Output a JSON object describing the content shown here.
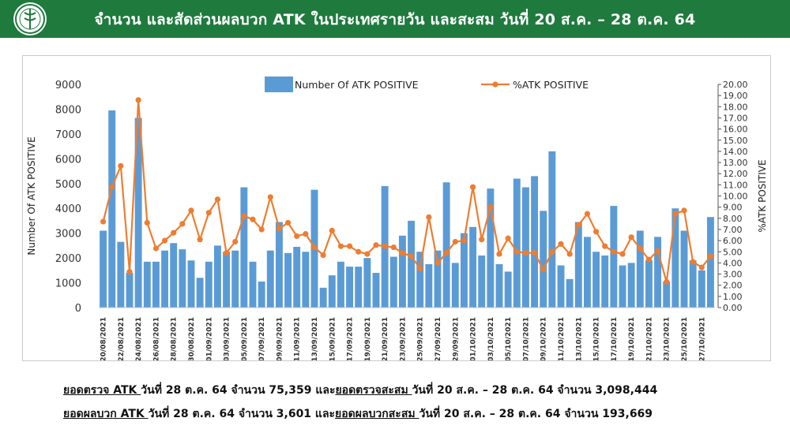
{
  "header": {
    "title": "จำนวน และสัดส่วนผลบวก ATK ในประเทศรายวัน และสะสม วันที่ 20 ส.ค. – 28 ต.ค. 64",
    "logo_icon": "health-department-seal-icon",
    "background": "#1f7a3e"
  },
  "chart_data": {
    "type": "bar+line",
    "ylabel": "Number Of ATK POSITIVE",
    "y2label": "%ATK POSITIVE",
    "ylim": [
      0,
      9000
    ],
    "y2lim": [
      0,
      20
    ],
    "yticks": [
      "0",
      "1000",
      "2000",
      "3000",
      "4000",
      "5000",
      "6000",
      "7000",
      "8000",
      "9000"
    ],
    "y2ticks": [
      "0.00",
      "1.00",
      "2.00",
      "3.00",
      "4.00",
      "5.00",
      "6.00",
      "7.00",
      "8.00",
      "9.00",
      "10.00",
      "11.00",
      "12.00",
      "13.00",
      "14.00",
      "15.00",
      "16.00",
      "17.00",
      "18.00",
      "19.00",
      "20.00"
    ],
    "legend": {
      "placement": "top-center",
      "bar_label": "Number Of ATK POSITIVE",
      "line_label": "%ATK POSITIVE"
    },
    "bar_color": "#5b9bd5",
    "line_color": "#ed7d31",
    "xticks": [
      "20/08/2021",
      "22/08/2021",
      "24/08/2021",
      "26/08/2021",
      "28/08/2021",
      "30/08/2021",
      "01/09/2021",
      "03/09/2021",
      "05/09/2021",
      "07/09/2021",
      "09/09/2021",
      "11/09/2021",
      "13/09/2021",
      "15/09/2021",
      "17/09/2021",
      "19/09/2021",
      "21/09/2021",
      "23/09/2021",
      "25/09/2021",
      "27/09/2021",
      "29/09/2021",
      "01/10/2021",
      "03/10/2021",
      "05/10/2021",
      "07/10/2021",
      "09/10/2021",
      "11/10/2021",
      "13/10/2021",
      "15/10/2021",
      "17/10/2021",
      "19/10/2021",
      "21/10/2021",
      "23/10/2021",
      "25/10/2021",
      "27/10/2021"
    ],
    "series": [
      {
        "name": "Number Of ATK POSITIVE",
        "values": [
          3100,
          7950,
          2650,
          1400,
          7650,
          1850,
          1850,
          2300,
          2600,
          2350,
          1900,
          1200,
          1850,
          2500,
          2250,
          2300,
          4850,
          1850,
          1050,
          2300,
          3450,
          2200,
          2450,
          2250,
          4750,
          800,
          1300,
          1850,
          1650,
          1650,
          2000,
          1400,
          4900,
          2050,
          2900,
          3500,
          2250,
          1750,
          2300,
          5050,
          1800,
          3000,
          3250,
          2100,
          4800,
          1750,
          1450,
          5200,
          4850,
          5300,
          3900,
          6300,
          1700,
          1150,
          3450,
          2850,
          2250,
          2100,
          4100,
          1700,
          1800,
          3100,
          1900,
          2850,
          1050,
          4000,
          3100,
          1900,
          1500,
          3650
        ]
      },
      {
        "name": "%ATK POSITIVE",
        "values": [
          7.7,
          10.8,
          12.7,
          3.2,
          18.6,
          7.6,
          5.3,
          6.0,
          6.7,
          7.5,
          8.7,
          6.1,
          8.5,
          9.7,
          4.9,
          5.9,
          8.2,
          7.9,
          7.0,
          9.9,
          7.1,
          7.6,
          6.4,
          6.6,
          5.4,
          4.7,
          6.9,
          5.5,
          5.5,
          5.0,
          4.8,
          5.6,
          5.5,
          5.4,
          4.9,
          4.6,
          3.5,
          8.1,
          4.0,
          4.9,
          5.9,
          6.0,
          10.8,
          6.1,
          9.0,
          4.8,
          6.2,
          5.0,
          4.9,
          4.9,
          3.4,
          5.0,
          5.7,
          4.8,
          7.4,
          8.4,
          6.8,
          5.5,
          5.0,
          4.8,
          6.3,
          5.3,
          4.3,
          5.1,
          2.3,
          8.4,
          8.7,
          4.1,
          3.6,
          4.6
        ]
      }
    ]
  },
  "notes": {
    "line1_part1": "ยอดตรวจ ATK ",
    "line1_part2": "วันที่ 28 ต.ค. 64 จำนวน 75,359 และ",
    "line1_part3": "ยอดตรวจสะสม ",
    "line1_part4": "วันที่ 20 ส.ค. – 28 ต.ค. 64 จำนวน 3,098,444",
    "line2_part1": "ยอดผลบวก ATK ",
    "line2_part2": "วันที่ 28 ต.ค. 64 จำนวน 3,601 และ",
    "line2_part3": "ยอดผลบวกสะสม ",
    "line2_part4": "วันที่ 20 ส.ค. – 28 ต.ค. 64 จำนวน 193,669"
  }
}
